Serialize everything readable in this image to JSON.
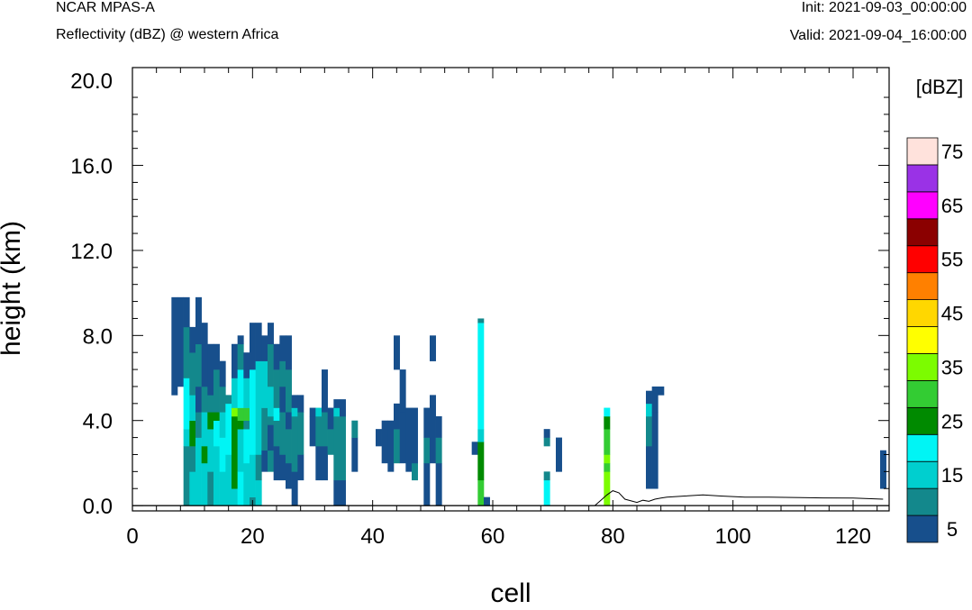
{
  "header": {
    "title": "NCAR MPAS-A",
    "subtitle": "Reflectivity (dBZ) @ western Africa",
    "init": "Init: 2021-09-03_00:00:00",
    "valid": "Valid: 2021-09-04_16:00:00"
  },
  "chart_data": {
    "type": "heatmap",
    "xlabel": "cell",
    "ylabel": "height (km)",
    "xlim": [
      0,
      126
    ],
    "ylim": [
      -0.25,
      20.6
    ],
    "xticks": [
      0,
      20,
      40,
      60,
      80,
      100,
      120
    ],
    "xtick_labels": [
      "0",
      "20",
      "40",
      "60",
      "80",
      "100",
      "120"
    ],
    "yticks": [
      0,
      4,
      8,
      12,
      16,
      20
    ],
    "ytick_labels": [
      "0.0",
      "4.0",
      "8.0",
      "12.0",
      "16.0",
      "20.0"
    ],
    "colorbar": {
      "unit_label": "[dBZ]",
      "levels": [
        5,
        10,
        15,
        20,
        25,
        30,
        35,
        40,
        45,
        50,
        55,
        60,
        65,
        70,
        75
      ],
      "tick_labels": [
        "5",
        "15",
        "25",
        "35",
        "45",
        "55",
        "65",
        "75"
      ],
      "colors": [
        "#174f8c",
        "#13888c",
        "#00cfcf",
        "#00f5f5",
        "#008a00",
        "#33cc33",
        "#7cfc00",
        "#ffff00",
        "#ffd700",
        "#ff8000",
        "#ff0000",
        "#8b0000",
        "#ff00ff",
        "#9a32e6",
        "#ffe2dc"
      ]
    },
    "cell_height_km": 0.4,
    "columns": [
      {
        "x": 7,
        "bands": [
          [
            5.2,
            9.8,
            5
          ]
        ]
      },
      {
        "x": 8,
        "bands": [
          [
            5.6,
            9.8,
            5
          ]
        ]
      },
      {
        "x": 9,
        "bands": [
          [
            0.0,
            2.8,
            10
          ],
          [
            2.8,
            3.6,
            15
          ],
          [
            3.6,
            6.0,
            20
          ],
          [
            6.0,
            8.4,
            10
          ],
          [
            8.4,
            9.8,
            5
          ]
        ]
      },
      {
        "x": 10,
        "bands": [
          [
            0.0,
            1.6,
            15
          ],
          [
            1.6,
            2.8,
            10
          ],
          [
            2.8,
            4.0,
            25
          ],
          [
            4.0,
            5.2,
            15
          ],
          [
            5.2,
            7.2,
            10
          ],
          [
            7.2,
            8.4,
            5
          ]
        ]
      },
      {
        "x": 11,
        "bands": [
          [
            0.0,
            3.2,
            15
          ],
          [
            3.2,
            4.4,
            10
          ],
          [
            4.4,
            5.6,
            5
          ],
          [
            5.6,
            7.6,
            10
          ],
          [
            7.6,
            9.8,
            5
          ]
        ]
      },
      {
        "x": 12,
        "bands": [
          [
            0.0,
            2.0,
            15
          ],
          [
            2.0,
            2.8,
            25
          ],
          [
            2.8,
            4.4,
            15
          ],
          [
            4.4,
            5.6,
            10
          ],
          [
            5.6,
            8.6,
            5
          ]
        ]
      },
      {
        "x": 13,
        "bands": [
          [
            0.0,
            1.6,
            10
          ],
          [
            1.6,
            3.6,
            15
          ],
          [
            3.6,
            4.4,
            25
          ],
          [
            4.4,
            5.2,
            10
          ],
          [
            5.2,
            7.6,
            5
          ]
        ]
      },
      {
        "x": 14,
        "bands": [
          [
            0.0,
            2.8,
            15
          ],
          [
            2.8,
            4.0,
            20
          ],
          [
            4.0,
            4.4,
            25
          ],
          [
            4.4,
            6.4,
            10
          ],
          [
            6.4,
            7.6,
            5
          ]
        ]
      },
      {
        "x": 15,
        "bands": [
          [
            0.0,
            1.6,
            15
          ],
          [
            1.6,
            3.2,
            20
          ],
          [
            3.2,
            4.4,
            15
          ],
          [
            4.4,
            5.6,
            10
          ],
          [
            5.6,
            6.8,
            5
          ]
        ]
      },
      {
        "x": 16,
        "bands": [
          [
            0.0,
            2.4,
            15
          ],
          [
            2.4,
            4.8,
            20
          ],
          [
            4.8,
            5.2,
            10
          ]
        ]
      },
      {
        "x": 17,
        "bands": [
          [
            0.0,
            0.8,
            15
          ],
          [
            0.8,
            4.2,
            25
          ],
          [
            4.2,
            4.6,
            35
          ],
          [
            4.6,
            6.0,
            15
          ],
          [
            6.0,
            7.6,
            5
          ]
        ]
      },
      {
        "x": 18,
        "bands": [
          [
            0.0,
            1.6,
            20
          ],
          [
            1.6,
            3.6,
            15
          ],
          [
            3.6,
            4.0,
            25
          ],
          [
            4.0,
            4.6,
            30
          ],
          [
            4.6,
            6.4,
            20
          ],
          [
            6.4,
            7.6,
            10
          ],
          [
            7.6,
            8.0,
            5
          ]
        ]
      },
      {
        "x": 19,
        "bands": [
          [
            0.0,
            2.0,
            15
          ],
          [
            2.0,
            3.6,
            20
          ],
          [
            3.6,
            4.0,
            10
          ],
          [
            4.0,
            4.6,
            30
          ],
          [
            4.6,
            6.0,
            15
          ],
          [
            6.0,
            7.2,
            5
          ]
        ]
      },
      {
        "x": 20,
        "bands": [
          [
            0.0,
            0.4,
            10
          ],
          [
            0.4,
            2.4,
            15
          ],
          [
            2.4,
            6.4,
            20
          ],
          [
            6.4,
            8.6,
            5
          ]
        ]
      },
      {
        "x": 21,
        "bands": [
          [
            0.0,
            1.2,
            15
          ],
          [
            1.2,
            2.4,
            10
          ],
          [
            2.4,
            6.8,
            15
          ],
          [
            6.8,
            8.6,
            5
          ]
        ]
      },
      {
        "x": 22,
        "bands": [
          [
            1.6,
            2.6,
            5
          ],
          [
            2.6,
            4.6,
            10
          ],
          [
            4.6,
            6.8,
            15
          ],
          [
            6.8,
            8.0,
            5
          ]
        ]
      },
      {
        "x": 23,
        "bands": [
          [
            1.6,
            2.6,
            10
          ],
          [
            2.6,
            3.8,
            5
          ],
          [
            3.8,
            4.2,
            10
          ],
          [
            4.2,
            5.6,
            15
          ],
          [
            5.6,
            7.6,
            10
          ],
          [
            7.6,
            8.6,
            5
          ]
        ]
      },
      {
        "x": 24,
        "bands": [
          [
            1.2,
            2.8,
            5
          ],
          [
            2.8,
            4.0,
            10
          ],
          [
            4.0,
            4.6,
            20
          ],
          [
            4.6,
            6.4,
            10
          ],
          [
            6.4,
            7.6,
            5
          ]
        ]
      },
      {
        "x": 25,
        "bands": [
          [
            1.2,
            2.4,
            5
          ],
          [
            2.4,
            4.4,
            10
          ],
          [
            4.4,
            5.6,
            5
          ],
          [
            5.6,
            6.8,
            10
          ],
          [
            6.8,
            8.0,
            5
          ]
        ]
      },
      {
        "x": 26,
        "bands": [
          [
            0.8,
            2.0,
            5
          ],
          [
            2.0,
            3.6,
            10
          ],
          [
            3.6,
            4.4,
            5
          ],
          [
            4.4,
            6.4,
            10
          ],
          [
            6.4,
            8.0,
            5
          ]
        ]
      },
      {
        "x": 27,
        "bands": [
          [
            0.0,
            1.6,
            5
          ],
          [
            1.6,
            4.2,
            10
          ],
          [
            4.2,
            4.6,
            15
          ],
          [
            4.6,
            5.2,
            5
          ]
        ]
      },
      {
        "x": 28,
        "bands": [
          [
            1.2,
            2.4,
            5
          ],
          [
            2.4,
            4.4,
            10
          ],
          [
            4.4,
            5.2,
            5
          ]
        ]
      },
      {
        "x": 30,
        "bands": [
          [
            2.8,
            4.2,
            5
          ],
          [
            4.2,
            4.6,
            5
          ]
        ]
      },
      {
        "x": 31,
        "bands": [
          [
            1.2,
            2.8,
            5
          ],
          [
            2.8,
            4.2,
            10
          ],
          [
            4.2,
            4.6,
            15
          ]
        ]
      },
      {
        "x": 32,
        "bands": [
          [
            1.2,
            2.8,
            5
          ],
          [
            2.8,
            4.4,
            10
          ],
          [
            4.4,
            6.4,
            5
          ]
        ]
      },
      {
        "x": 33,
        "bands": [
          [
            2.4,
            3.6,
            10
          ],
          [
            3.6,
            4.6,
            5
          ]
        ]
      },
      {
        "x": 34,
        "bands": [
          [
            0.0,
            1.2,
            5
          ],
          [
            1.2,
            2.4,
            10
          ],
          [
            2.4,
            4.2,
            10
          ],
          [
            4.2,
            4.6,
            15
          ],
          [
            4.6,
            5.0,
            5
          ]
        ]
      },
      {
        "x": 35,
        "bands": [
          [
            0.0,
            1.2,
            5
          ],
          [
            1.2,
            1.6,
            10
          ],
          [
            1.6,
            4.2,
            10
          ],
          [
            4.2,
            5.0,
            5
          ]
        ]
      },
      {
        "x": 37,
        "bands": [
          [
            1.6,
            3.2,
            5
          ],
          [
            3.2,
            4.0,
            10
          ]
        ]
      },
      {
        "x": 41,
        "bands": [
          [
            2.8,
            3.6,
            5
          ]
        ]
      },
      {
        "x": 42,
        "bands": [
          [
            2.0,
            4.0,
            5
          ]
        ]
      },
      {
        "x": 43,
        "bands": [
          [
            1.6,
            4.0,
            5
          ]
        ]
      },
      {
        "x": 44,
        "bands": [
          [
            2.0,
            3.6,
            10
          ],
          [
            3.6,
            4.8,
            5
          ],
          [
            6.4,
            8.0,
            5
          ]
        ]
      },
      {
        "x": 45,
        "bands": [
          [
            2.0,
            4.4,
            5
          ],
          [
            4.4,
            6.4,
            5
          ]
        ]
      },
      {
        "x": 46,
        "bands": [
          [
            1.6,
            4.6,
            5
          ]
        ]
      },
      {
        "x": 47,
        "bands": [
          [
            1.2,
            2.0,
            10
          ],
          [
            2.0,
            4.6,
            5
          ]
        ]
      },
      {
        "x": 49,
        "bands": [
          [
            0.0,
            2.0,
            5
          ],
          [
            2.0,
            3.2,
            10
          ],
          [
            3.2,
            4.6,
            5
          ]
        ]
      },
      {
        "x": 50,
        "bands": [
          [
            2.0,
            5.2,
            5
          ],
          [
            6.8,
            8.0,
            5
          ]
        ]
      },
      {
        "x": 51,
        "bands": [
          [
            0.0,
            2.0,
            5
          ],
          [
            2.0,
            3.2,
            10
          ],
          [
            3.2,
            4.2,
            5
          ]
        ]
      },
      {
        "x": 57,
        "bands": [
          [
            2.4,
            3.0,
            5
          ]
        ]
      },
      {
        "x": 58,
        "bands": [
          [
            0.0,
            1.2,
            30
          ],
          [
            1.2,
            3.0,
            25
          ],
          [
            3.0,
            3.6,
            15
          ],
          [
            3.6,
            5.2,
            20
          ],
          [
            5.2,
            8.6,
            20
          ],
          [
            8.6,
            8.8,
            10
          ]
        ]
      },
      {
        "x": 59,
        "bands": [
          [
            0.0,
            0.4,
            5
          ]
        ]
      },
      {
        "x": 69,
        "bands": [
          [
            0.0,
            1.2,
            20
          ],
          [
            1.2,
            1.6,
            10
          ],
          [
            2.8,
            3.2,
            10
          ],
          [
            3.2,
            3.6,
            5
          ]
        ]
      },
      {
        "x": 71,
        "bands": [
          [
            1.6,
            3.2,
            5
          ]
        ]
      },
      {
        "x": 79,
        "bands": [
          [
            0.0,
            1.6,
            35
          ],
          [
            1.6,
            2.0,
            30
          ],
          [
            2.0,
            2.4,
            35
          ],
          [
            2.4,
            3.6,
            30
          ],
          [
            3.6,
            4.2,
            25
          ],
          [
            4.2,
            4.6,
            20
          ]
        ]
      },
      {
        "x": 86,
        "bands": [
          [
            0.8,
            2.8,
            5
          ],
          [
            2.8,
            4.2,
            10
          ],
          [
            4.2,
            4.8,
            15
          ],
          [
            4.8,
            5.4,
            5
          ]
        ]
      },
      {
        "x": 87,
        "bands": [
          [
            0.8,
            4.4,
            5
          ],
          [
            4.4,
            5.6,
            5
          ]
        ]
      },
      {
        "x": 88,
        "bands": [
          [
            5.2,
            5.6,
            5
          ]
        ]
      },
      {
        "x": 125,
        "bands": [
          [
            0.8,
            2.6,
            5
          ]
        ]
      }
    ],
    "terrain": {
      "x": [
        0,
        75,
        77,
        78,
        79,
        80,
        81,
        82,
        84,
        85,
        86,
        87,
        88,
        89,
        92,
        95,
        98,
        102,
        106,
        110,
        115,
        120,
        125
      ],
      "height": [
        0,
        0,
        0.0,
        0.25,
        0.5,
        0.7,
        0.6,
        0.3,
        0.15,
        0.25,
        0.2,
        0.3,
        0.35,
        0.4,
        0.45,
        0.5,
        0.45,
        0.4,
        0.4,
        0.38,
        0.36,
        0.35,
        0.3
      ]
    }
  }
}
